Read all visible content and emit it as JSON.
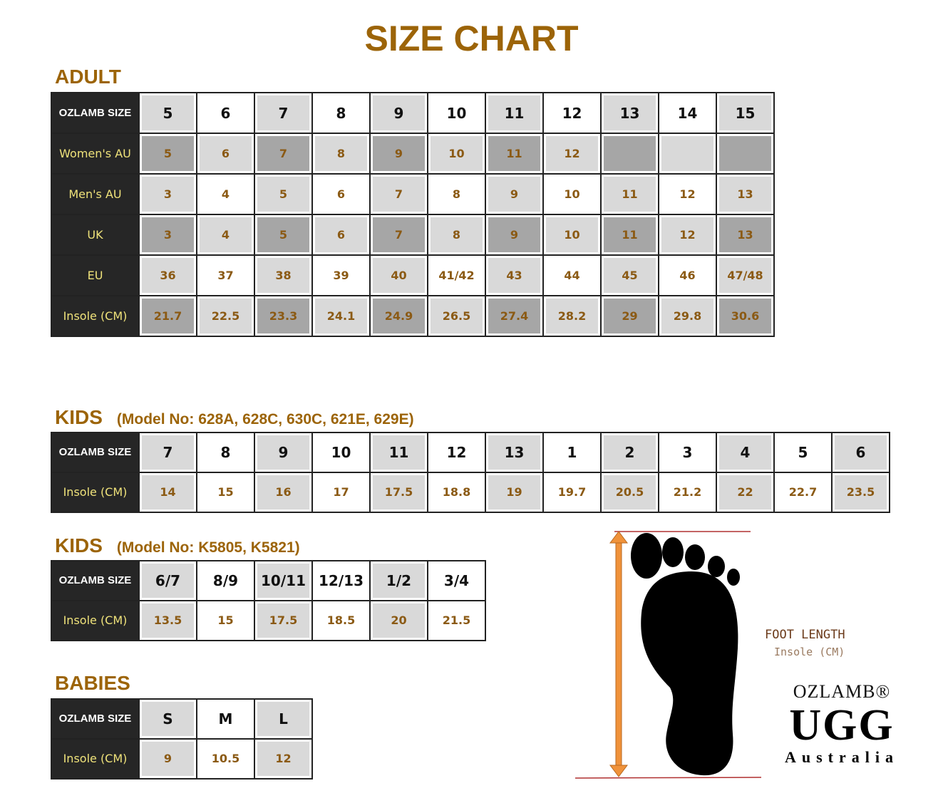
{
  "title": "SIZE CHART",
  "colors": {
    "heading": "#9c6408",
    "label_bg": "#262626",
    "label_text": "#efe27a",
    "cell_light": "#d9d9d9",
    "cell_dark": "#a6a6a6",
    "value_text": "#8b5a14",
    "arrow": "#f0923a"
  },
  "adult": {
    "heading": "ADULT",
    "rows": [
      {
        "label": "OZLAMB SIZE",
        "values": [
          "5",
          "6",
          "7",
          "8",
          "9",
          "10",
          "11",
          "12",
          "13",
          "14",
          "15"
        ]
      },
      {
        "label": "Women's AU",
        "values": [
          "5",
          "6",
          "7",
          "8",
          "9",
          "10",
          "11",
          "12",
          "",
          "",
          ""
        ]
      },
      {
        "label": "Men's AU",
        "values": [
          "3",
          "4",
          "5",
          "6",
          "7",
          "8",
          "9",
          "10",
          "11",
          "12",
          "13"
        ]
      },
      {
        "label": "UK",
        "values": [
          "3",
          "4",
          "5",
          "6",
          "7",
          "8",
          "9",
          "10",
          "11",
          "12",
          "13"
        ]
      },
      {
        "label": "EU",
        "values": [
          "36",
          "37",
          "38",
          "39",
          "40",
          "41/42",
          "43",
          "44",
          "45",
          "46",
          "47/48"
        ]
      },
      {
        "label": "Insole (CM)",
        "values": [
          "21.7",
          "22.5",
          "23.3",
          "24.1",
          "24.9",
          "26.5",
          "27.4",
          "28.2",
          "29",
          "29.8",
          "30.6"
        ]
      }
    ]
  },
  "kids1": {
    "heading": "KIDS",
    "subheading": "(Model No: 628A, 628C, 630C, 621E, 629E)",
    "rows": [
      {
        "label": "OZLAMB SIZE",
        "values": [
          "7",
          "8",
          "9",
          "10",
          "11",
          "12",
          "13",
          "1",
          "2",
          "3",
          "4",
          "5",
          "6"
        ]
      },
      {
        "label": "Insole (CM)",
        "values": [
          "14",
          "15",
          "16",
          "17",
          "17.5",
          "18.8",
          "19",
          "19.7",
          "20.5",
          "21.2",
          "22",
          "22.7",
          "23.5"
        ]
      }
    ]
  },
  "kids2": {
    "heading": "KIDS",
    "subheading": "(Model No: K5805, K5821)",
    "rows": [
      {
        "label": "OZLAMB SIZE",
        "values": [
          "6/7",
          "8/9",
          "10/11",
          "12/13",
          "1/2",
          "3/4"
        ]
      },
      {
        "label": "Insole (CM)",
        "values": [
          "13.5",
          "15",
          "17.5",
          "18.5",
          "20",
          "21.5"
        ]
      }
    ]
  },
  "babies": {
    "heading": "BABIES",
    "rows": [
      {
        "label": "OZLAMB SIZE",
        "values": [
          "S",
          "M",
          "L"
        ]
      },
      {
        "label": "Insole (CM)",
        "values": [
          "9",
          "10.5",
          "12"
        ]
      }
    ]
  },
  "diagram": {
    "label": "FOOT LENGTH",
    "sublabel": "Insole (CM)",
    "icon": "foot-icon"
  },
  "logo": {
    "line1": "OZLAMB®",
    "line2": "UGG",
    "line3": "Australia"
  }
}
